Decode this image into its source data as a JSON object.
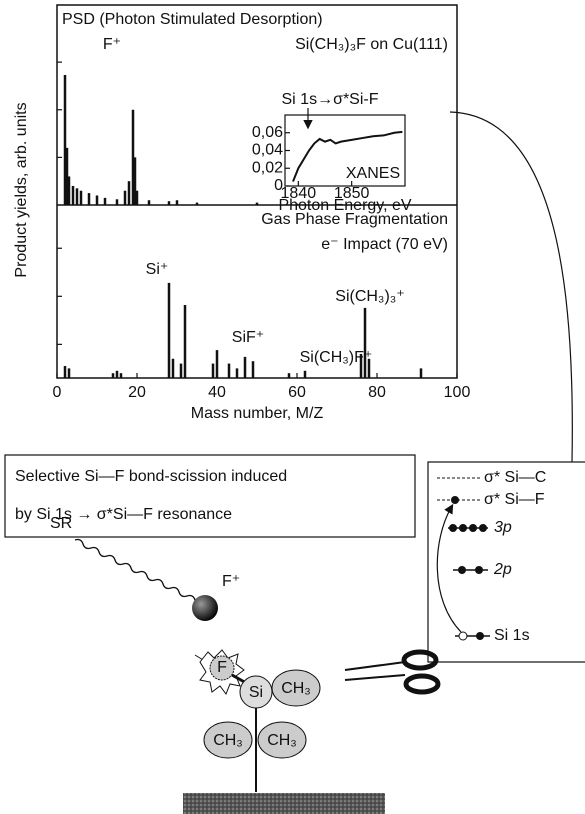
{
  "chart_data": [
    {
      "type": "spectrum",
      "title": "PSD (Photon Stimulated Desorption)",
      "subtitle": "Si(CH₃)₃F on Cu(111)",
      "ylabel": "Product yields, arb. units",
      "xlim": [
        0,
        100
      ],
      "ylim": [
        0,
        4.2
      ],
      "yticks": [
        1,
        2,
        3
      ],
      "x": [
        2,
        2.5,
        3,
        4,
        5,
        6,
        8,
        10,
        12,
        15,
        17,
        18,
        19,
        19.5,
        20,
        23,
        28,
        30,
        35,
        50,
        60,
        80
      ],
      "values": [
        2.73,
        1.2,
        0.6,
        0.4,
        0.35,
        0.3,
        0.25,
        0.2,
        0.15,
        0.12,
        0.3,
        0.5,
        2.0,
        1.0,
        0.3,
        0.1,
        0.08,
        0.1,
        0.05,
        0.05,
        0.03,
        0.02
      ],
      "color": "#111111",
      "annotations": [
        "F⁺"
      ]
    },
    {
      "type": "spectrum",
      "title": "Gas Phase Fragmentation",
      "subtitle": "e⁻ Impact (70 eV)",
      "xlabel": "Mass number, M/Z",
      "xlim": [
        0,
        100
      ],
      "xticks": [
        0,
        20,
        40,
        60,
        80,
        100
      ],
      "ylim": [
        0,
        3.6
      ],
      "yticks": [
        0.7,
        1.7,
        2.7
      ],
      "x": [
        2,
        3,
        14,
        15,
        16,
        28,
        29,
        31,
        32,
        39,
        40,
        43,
        45,
        47,
        49,
        58,
        62,
        76,
        77,
        78,
        91
      ],
      "values": [
        0.25,
        0.2,
        0.1,
        0.15,
        0.1,
        1.98,
        0.4,
        0.3,
        1.52,
        0.3,
        0.58,
        0.3,
        0.2,
        0.44,
        0.35,
        0.1,
        0.15,
        0.5,
        1.46,
        0.4,
        0.2
      ],
      "color": "#111111",
      "annotations": [
        "Si⁺",
        "SiF⁺",
        "Si(CH₃)F⁺",
        "Si(CH₃)₃⁺"
      ]
    },
    {
      "type": "line",
      "xlabel": "Photon Energy, eV",
      "xlim": [
        1837.5,
        1860
      ],
      "xticks": [
        1840,
        1850
      ],
      "ylim": [
        0,
        0.08
      ],
      "yticks": [
        0,
        {
          "value": 0.02,
          "label": "0,02"
        },
        {
          "value": 0.04,
          "label": "0,04"
        },
        {
          "value": 0.06,
          "label": "0,06"
        }
      ],
      "x": [
        1839,
        1840,
        1841,
        1842,
        1843,
        1844,
        1845,
        1846,
        1847,
        1848,
        1850,
        1852,
        1854,
        1856,
        1858,
        1859.5
      ],
      "values": [
        0.005,
        0.02,
        0.03,
        0.04,
        0.048,
        0.053,
        0.05,
        0.052,
        0.048,
        0.05,
        0.052,
        0.054,
        0.056,
        0.057,
        0.06,
        0.061
      ],
      "color": "#111111",
      "annotations": [
        "Si 1s→σ*Si-F",
        "XANES"
      ]
    }
  ],
  "text_box": [
    "Selective Si—F bond-scission induced",
    "by Si 1s → σ*Si—F resonance"
  ],
  "energy_levels": [
    "σ* Si—C",
    "σ* Si—F",
    "3p",
    "2p",
    "Si 1s"
  ],
  "scene": [
    "SR",
    "F⁺",
    "F",
    "Si",
    "CH₃",
    "CH₃",
    "CH₃"
  ]
}
